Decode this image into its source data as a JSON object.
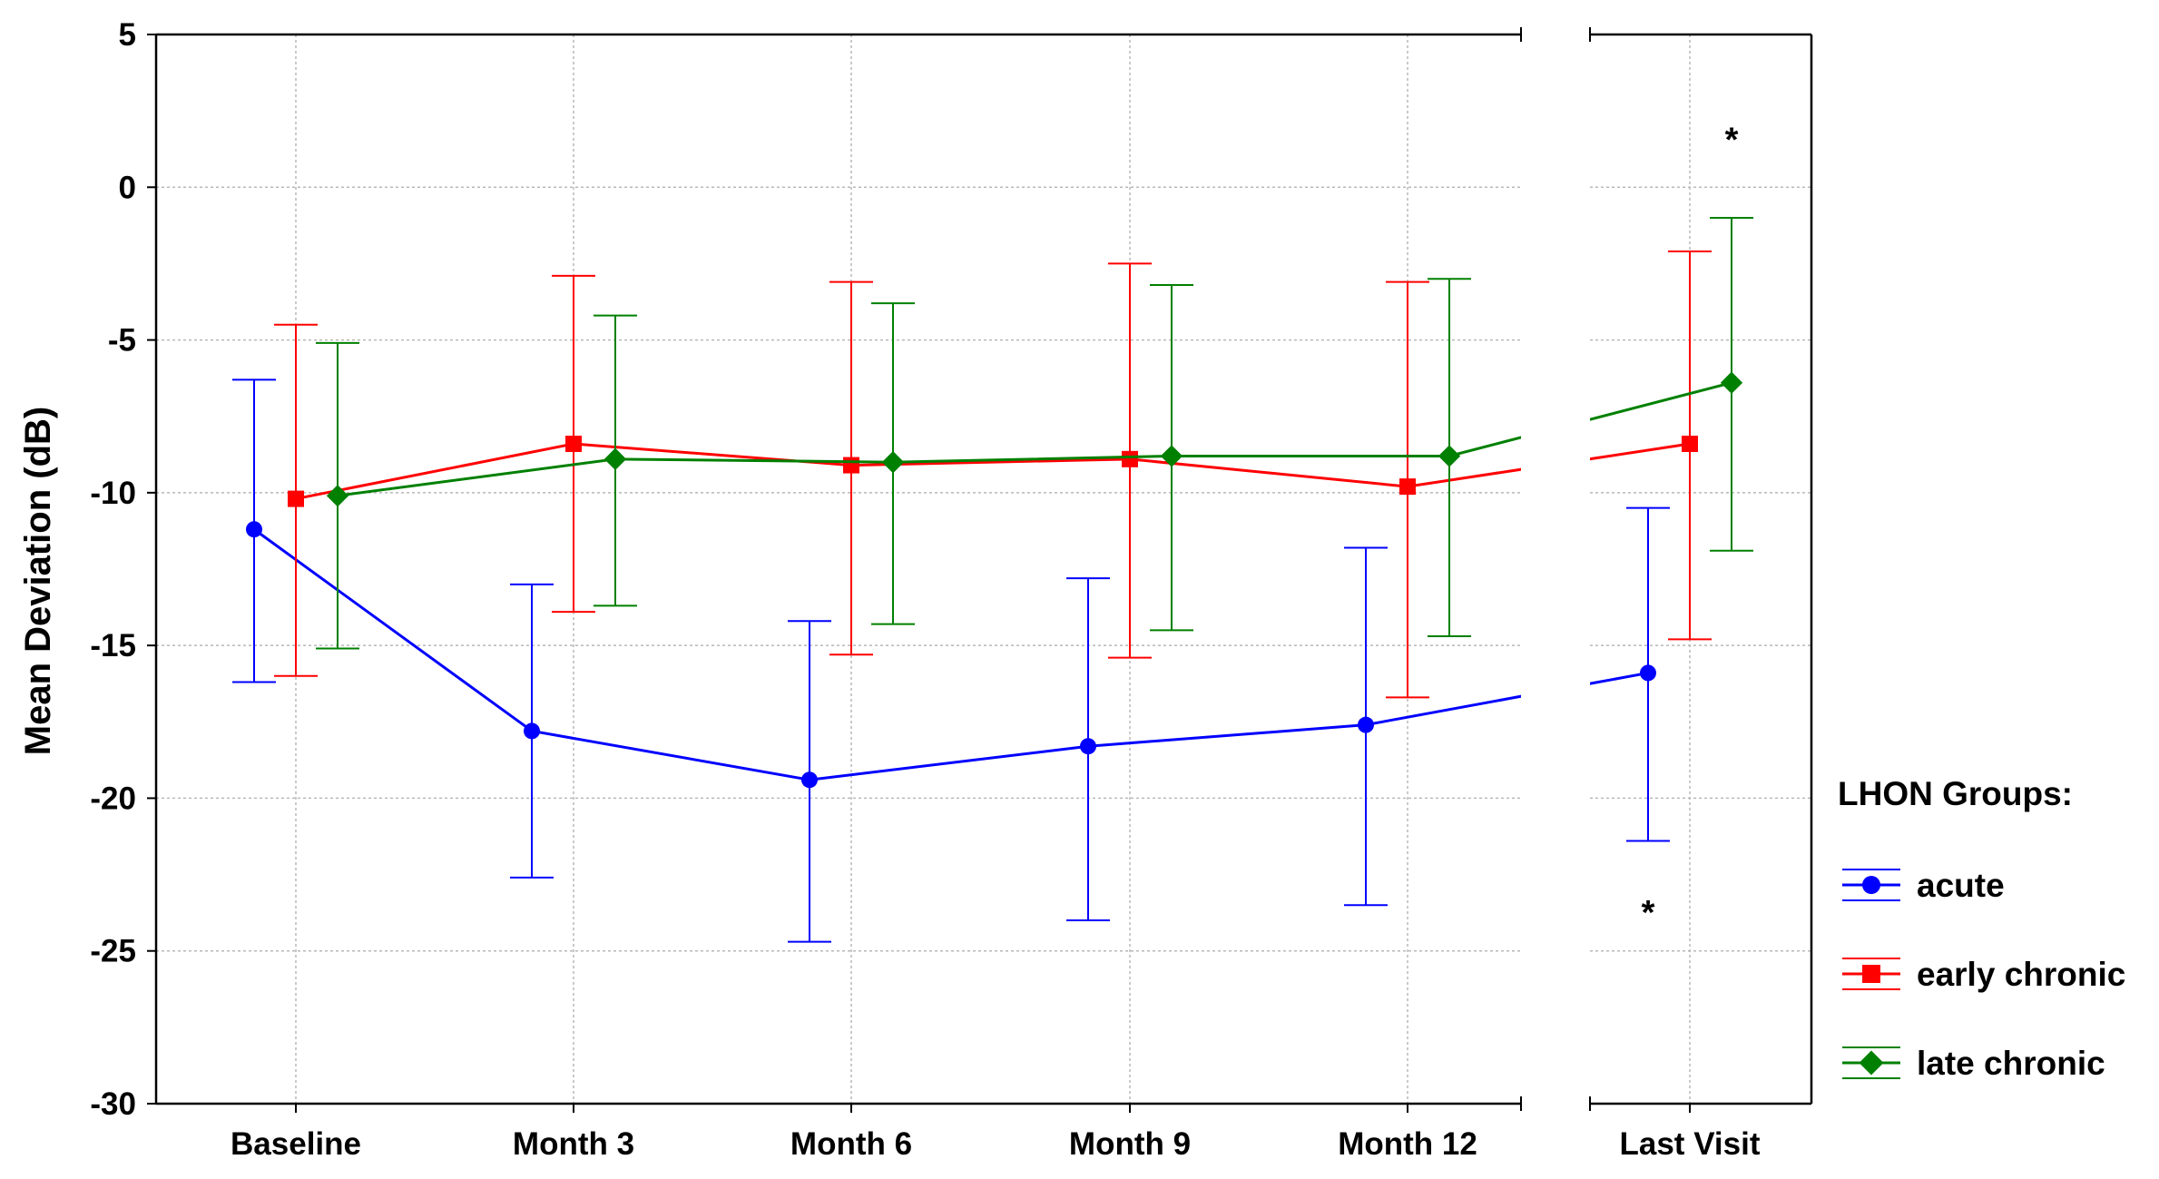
{
  "chart_data": {
    "type": "line",
    "title": "",
    "xlabel": "",
    "ylabel": "Mean Deviation (dB)",
    "ylim": [
      -30,
      5
    ],
    "yticks": [
      5,
      0,
      -5,
      -10,
      -15,
      -20,
      -25,
      -30
    ],
    "grid": true,
    "categories": [
      "Baseline",
      "Month 3",
      "Month 6",
      "Month 9",
      "Month 12",
      "Last Visit"
    ],
    "legend_title": "LHON Groups:",
    "legend_position": "right",
    "series": [
      {
        "name": "acute",
        "color": "#0000ff",
        "marker": "circle",
        "values": [
          -11.2,
          -17.8,
          -19.4,
          -18.3,
          -17.6,
          -15.9
        ],
        "lower": [
          -16.2,
          -22.6,
          -24.7,
          -24.0,
          -23.5,
          -21.4
        ],
        "upper": [
          -6.3,
          -13.0,
          -14.2,
          -12.8,
          -11.8,
          -10.5
        ]
      },
      {
        "name": "early chronic",
        "color": "#ff0000",
        "marker": "square",
        "values": [
          -10.2,
          -8.4,
          -9.1,
          -8.9,
          -9.8,
          -8.4
        ],
        "lower": [
          -16.0,
          -13.9,
          -15.3,
          -15.4,
          -16.7,
          -14.8
        ],
        "upper": [
          -4.5,
          -2.9,
          -3.1,
          -2.5,
          -3.1,
          -2.1
        ]
      },
      {
        "name": "late chronic",
        "color": "#008000",
        "marker": "diamond",
        "values": [
          -10.1,
          -8.9,
          -9.0,
          -8.8,
          -8.8,
          -6.4
        ],
        "lower": [
          -15.1,
          -13.7,
          -14.3,
          -14.5,
          -14.7,
          -11.9
        ],
        "upper": [
          -5.1,
          -4.2,
          -3.8,
          -3.2,
          -3.0,
          -1.0
        ]
      }
    ],
    "annotations": [
      {
        "text": "*",
        "category": "Last Visit",
        "series": "late chronic",
        "y": 1.6
      },
      {
        "text": "*",
        "category": "Last Visit",
        "series": "acute",
        "y": -23.7
      }
    ]
  }
}
